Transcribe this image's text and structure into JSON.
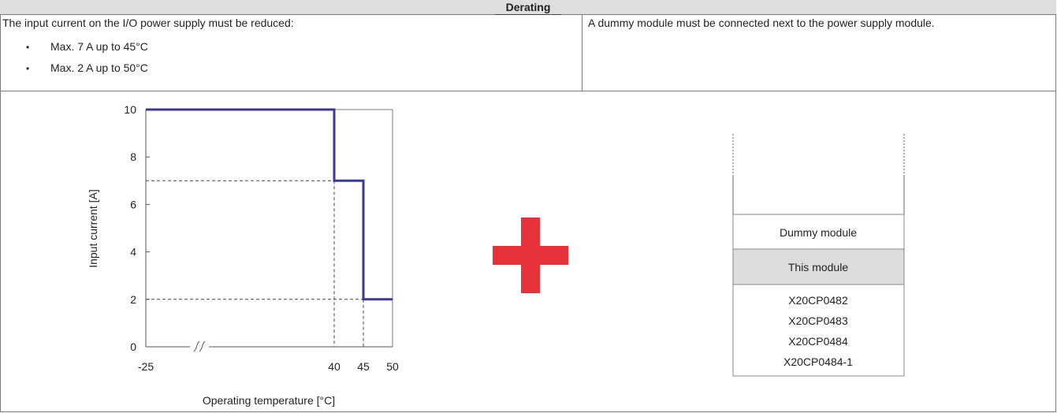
{
  "header": {
    "title": "Derating"
  },
  "left": {
    "intro": "The input current on the I/O power supply must be reduced:",
    "bullets": [
      "Max. 7 A up to 45°C",
      "Max. 2 A up to 50°C"
    ]
  },
  "right": {
    "intro": "A dummy module must be connected next to the power supply module."
  },
  "chart_data": {
    "type": "line",
    "ylabel": "Input current [A]",
    "xlabel": "Operating temperature [°C]",
    "x_ticks": [
      "-25",
      "40",
      "45",
      "50"
    ],
    "y_ticks": [
      "0",
      "2",
      "4",
      "6",
      "8",
      "10"
    ],
    "ylim": [
      0,
      10
    ],
    "axis_break": true,
    "series": [
      {
        "color": "#3a3a94",
        "points": [
          [
            -25,
            10
          ],
          [
            40,
            10
          ],
          [
            40,
            7
          ],
          [
            45,
            7
          ],
          [
            45,
            2
          ],
          [
            50,
            2
          ]
        ]
      }
    ],
    "reference_lines": [
      {
        "y": 7,
        "x": 40
      },
      {
        "y": 2,
        "x": 45
      }
    ]
  },
  "plus_icon": {
    "color": "#e8323a"
  },
  "module_stack": {
    "dummy_label": "Dummy module",
    "this_label": "This module",
    "this_fill": "#dcdcdc",
    "power_modules": [
      "X20CP0482",
      "X20CP0483",
      "X20CP0484",
      "X20CP0484-1"
    ]
  }
}
